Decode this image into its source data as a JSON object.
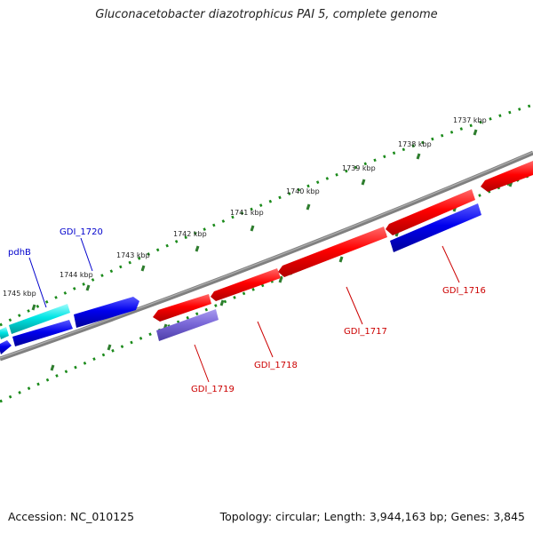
{
  "title": "Gluconacetobacter diazotrophicus PAI 5, complete genome",
  "footer": {
    "accession": "Accession: NC_010125",
    "summary": "Topology: circular; Length: 3,944,163 bp; Genes: 3,845"
  },
  "scale_labels": [
    "1737 kbp",
    "1738 kbp",
    "1739 kbp",
    "1740 kbp",
    "1741 kbp",
    "1742 kbp",
    "1743 kbp",
    "1744 kbp",
    "1745 kbp"
  ],
  "gene_labels": [
    {
      "name": "pdhB",
      "strand": "forward",
      "color": "#0000cc"
    },
    {
      "name": "GDI_1720",
      "strand": "forward",
      "color": "#0000cc"
    },
    {
      "name": "GDI_1719",
      "strand": "reverse",
      "color": "#cc0000"
    },
    {
      "name": "GDI_1718",
      "strand": "reverse",
      "color": "#cc0000"
    },
    {
      "name": "GDI_1717",
      "strand": "reverse",
      "color": "#cc0000"
    },
    {
      "name": "GDI_1716",
      "strand": "reverse",
      "color": "#cc0000"
    }
  ],
  "colors": {
    "backbone": "#808080",
    "forward_cds": "#0000ee",
    "forward_cds_alt": "#00e5e5",
    "reverse_cds": "#ff0000",
    "reverse_other": "#7a68d8",
    "tick_major": "#2e7d2e",
    "tick_minor": "#1a8a1a"
  }
}
